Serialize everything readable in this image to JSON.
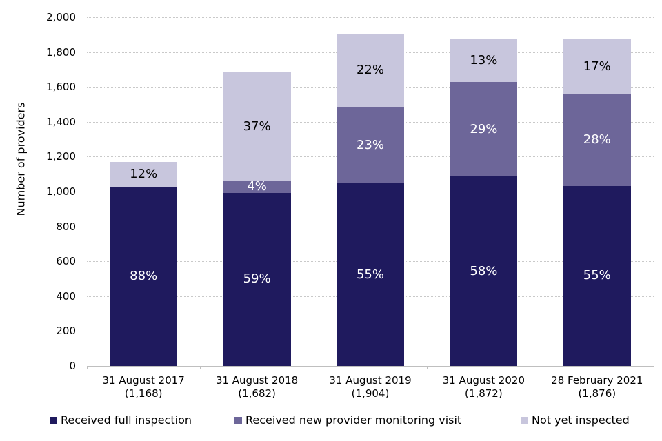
{
  "chart_data": {
    "type": "bar",
    "stacked": true,
    "title": "",
    "xlabel": "",
    "ylabel": "Number of providers",
    "ylim": [
      0,
      2000
    ],
    "ytick_step": 200,
    "ytick_labels": [
      "0",
      "200",
      "400",
      "600",
      "800",
      "1,000",
      "1,200",
      "1,400",
      "1,600",
      "1,800",
      "2,000"
    ],
    "grid": true,
    "legend_position": "bottom",
    "series": [
      {
        "name": "Received full inspection",
        "color": "#1F1A5E",
        "label_color": "#FFFFFF"
      },
      {
        "name": "Received new provider monitoring visit",
        "color": "#6D6699",
        "label_color": "#FFFFFF"
      },
      {
        "name": "Not yet inspected",
        "color": "#C8C6DD",
        "label_color": "#000000"
      }
    ],
    "bars": [
      {
        "date": "31 August 2017",
        "total_label": "(1,168)",
        "total": 1168,
        "percents": [
          88,
          null,
          12
        ],
        "segment_labels": [
          "88%",
          null,
          "12%"
        ],
        "values": [
          1028,
          0,
          140
        ]
      },
      {
        "date": "31 August 2018",
        "total_label": "(1,682)",
        "total": 1682,
        "percents": [
          59,
          4,
          37
        ],
        "segment_labels": [
          "59%",
          "4%",
          "37%"
        ],
        "values": [
          992,
          67,
          622
        ]
      },
      {
        "date": "31 August 2019",
        "total_label": "(1,904)",
        "total": 1904,
        "percents": [
          55,
          23,
          22
        ],
        "segment_labels": [
          "55%",
          "23%",
          "22%"
        ],
        "values": [
          1047,
          438,
          419
        ]
      },
      {
        "date": "31 August 2020",
        "total_label": "(1,872)",
        "total": 1872,
        "percents": [
          58,
          29,
          13
        ],
        "segment_labels": [
          "58%",
          "29%",
          "13%"
        ],
        "values": [
          1086,
          543,
          243
        ]
      },
      {
        "date": "28 February 2021",
        "total_label": "(1,876)",
        "total": 1876,
        "percents": [
          55,
          28,
          17
        ],
        "segment_labels": [
          "55%",
          "28%",
          "17%"
        ],
        "values": [
          1032,
          525,
          319
        ]
      }
    ]
  }
}
